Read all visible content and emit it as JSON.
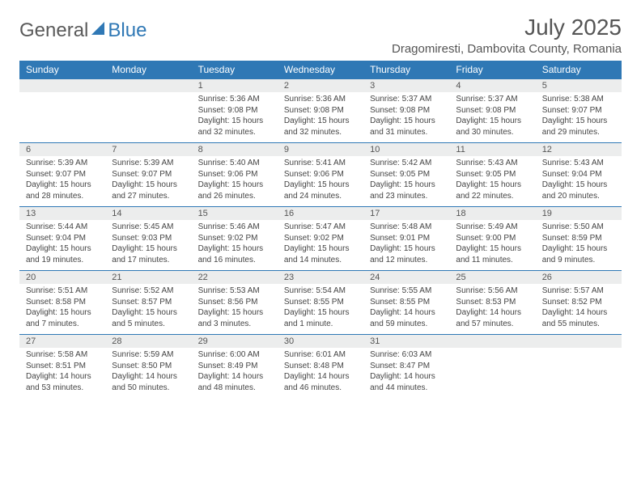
{
  "brand": {
    "part1": "General",
    "part2": "Blue"
  },
  "title": {
    "month": "July 2025",
    "location": "Dragomiresti, Dambovita County, Romania"
  },
  "colors": {
    "header_bg": "#2f78b5",
    "daynum_bg": "#eceded",
    "rule": "#2f78b5",
    "text": "#444444"
  },
  "day_labels": [
    "Sunday",
    "Monday",
    "Tuesday",
    "Wednesday",
    "Thursday",
    "Friday",
    "Saturday"
  ],
  "weeks": [
    [
      null,
      null,
      {
        "n": "1",
        "sr": "5:36 AM",
        "ss": "9:08 PM",
        "dl": "15 hours and 32 minutes."
      },
      {
        "n": "2",
        "sr": "5:36 AM",
        "ss": "9:08 PM",
        "dl": "15 hours and 32 minutes."
      },
      {
        "n": "3",
        "sr": "5:37 AM",
        "ss": "9:08 PM",
        "dl": "15 hours and 31 minutes."
      },
      {
        "n": "4",
        "sr": "5:37 AM",
        "ss": "9:08 PM",
        "dl": "15 hours and 30 minutes."
      },
      {
        "n": "5",
        "sr": "5:38 AM",
        "ss": "9:07 PM",
        "dl": "15 hours and 29 minutes."
      }
    ],
    [
      {
        "n": "6",
        "sr": "5:39 AM",
        "ss": "9:07 PM",
        "dl": "15 hours and 28 minutes."
      },
      {
        "n": "7",
        "sr": "5:39 AM",
        "ss": "9:07 PM",
        "dl": "15 hours and 27 minutes."
      },
      {
        "n": "8",
        "sr": "5:40 AM",
        "ss": "9:06 PM",
        "dl": "15 hours and 26 minutes."
      },
      {
        "n": "9",
        "sr": "5:41 AM",
        "ss": "9:06 PM",
        "dl": "15 hours and 24 minutes."
      },
      {
        "n": "10",
        "sr": "5:42 AM",
        "ss": "9:05 PM",
        "dl": "15 hours and 23 minutes."
      },
      {
        "n": "11",
        "sr": "5:43 AM",
        "ss": "9:05 PM",
        "dl": "15 hours and 22 minutes."
      },
      {
        "n": "12",
        "sr": "5:43 AM",
        "ss": "9:04 PM",
        "dl": "15 hours and 20 minutes."
      }
    ],
    [
      {
        "n": "13",
        "sr": "5:44 AM",
        "ss": "9:04 PM",
        "dl": "15 hours and 19 minutes."
      },
      {
        "n": "14",
        "sr": "5:45 AM",
        "ss": "9:03 PM",
        "dl": "15 hours and 17 minutes."
      },
      {
        "n": "15",
        "sr": "5:46 AM",
        "ss": "9:02 PM",
        "dl": "15 hours and 16 minutes."
      },
      {
        "n": "16",
        "sr": "5:47 AM",
        "ss": "9:02 PM",
        "dl": "15 hours and 14 minutes."
      },
      {
        "n": "17",
        "sr": "5:48 AM",
        "ss": "9:01 PM",
        "dl": "15 hours and 12 minutes."
      },
      {
        "n": "18",
        "sr": "5:49 AM",
        "ss": "9:00 PM",
        "dl": "15 hours and 11 minutes."
      },
      {
        "n": "19",
        "sr": "5:50 AM",
        "ss": "8:59 PM",
        "dl": "15 hours and 9 minutes."
      }
    ],
    [
      {
        "n": "20",
        "sr": "5:51 AM",
        "ss": "8:58 PM",
        "dl": "15 hours and 7 minutes."
      },
      {
        "n": "21",
        "sr": "5:52 AM",
        "ss": "8:57 PM",
        "dl": "15 hours and 5 minutes."
      },
      {
        "n": "22",
        "sr": "5:53 AM",
        "ss": "8:56 PM",
        "dl": "15 hours and 3 minutes."
      },
      {
        "n": "23",
        "sr": "5:54 AM",
        "ss": "8:55 PM",
        "dl": "15 hours and 1 minute."
      },
      {
        "n": "24",
        "sr": "5:55 AM",
        "ss": "8:55 PM",
        "dl": "14 hours and 59 minutes."
      },
      {
        "n": "25",
        "sr": "5:56 AM",
        "ss": "8:53 PM",
        "dl": "14 hours and 57 minutes."
      },
      {
        "n": "26",
        "sr": "5:57 AM",
        "ss": "8:52 PM",
        "dl": "14 hours and 55 minutes."
      }
    ],
    [
      {
        "n": "27",
        "sr": "5:58 AM",
        "ss": "8:51 PM",
        "dl": "14 hours and 53 minutes."
      },
      {
        "n": "28",
        "sr": "5:59 AM",
        "ss": "8:50 PM",
        "dl": "14 hours and 50 minutes."
      },
      {
        "n": "29",
        "sr": "6:00 AM",
        "ss": "8:49 PM",
        "dl": "14 hours and 48 minutes."
      },
      {
        "n": "30",
        "sr": "6:01 AM",
        "ss": "8:48 PM",
        "dl": "14 hours and 46 minutes."
      },
      {
        "n": "31",
        "sr": "6:03 AM",
        "ss": "8:47 PM",
        "dl": "14 hours and 44 minutes."
      },
      null,
      null
    ]
  ],
  "labels": {
    "sunrise": "Sunrise:",
    "sunset": "Sunset:",
    "daylight": "Daylight:"
  }
}
